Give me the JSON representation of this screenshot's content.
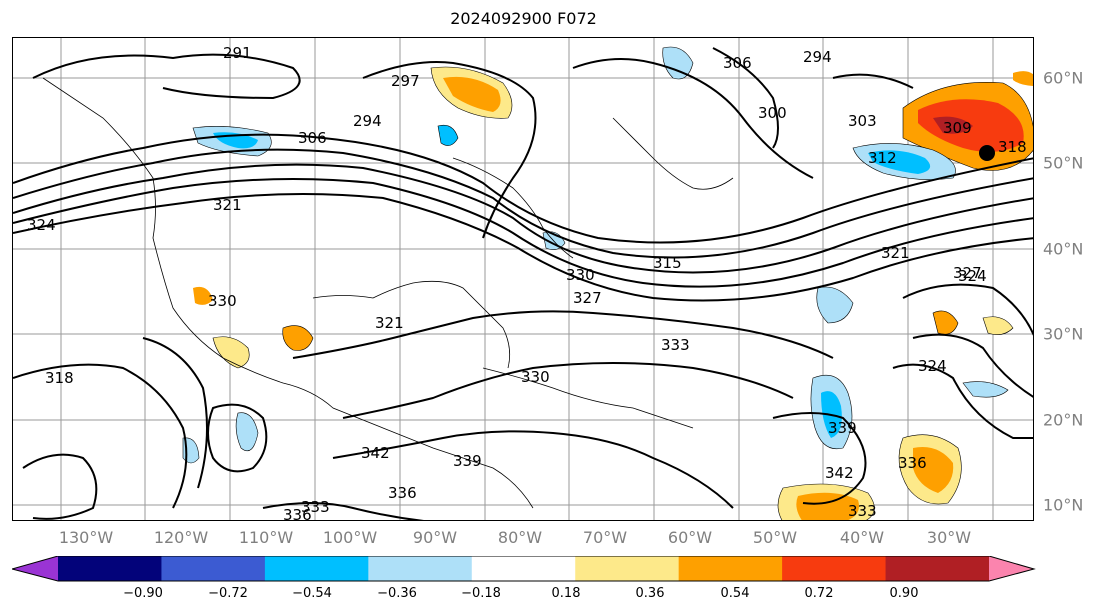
{
  "title": "2024092900 F072",
  "map": {
    "lon_ticks": [
      "130°W",
      "120°W",
      "110°W",
      "100°W",
      "90°W",
      "80°W",
      "70°W",
      "60°W",
      "50°W",
      "40°W",
      "30°W"
    ],
    "lat_ticks": [
      "60°N",
      "50°N",
      "40°N",
      "30°N",
      "20°N",
      "10°N"
    ],
    "contour_labels": [
      "291",
      "297",
      "294",
      "306",
      "300",
      "294",
      "303",
      "309",
      "312",
      "318",
      "324",
      "321",
      "315",
      "330",
      "327",
      "321",
      "330",
      "324",
      "333",
      "336",
      "339",
      "342",
      "318",
      "336",
      "333",
      "330",
      "339",
      "342",
      "336",
      "333",
      "324",
      "327",
      "321",
      "306"
    ],
    "marker": "filled-circle"
  },
  "colorbar": {
    "ticks": [
      "−0.90",
      "−0.72",
      "−0.54",
      "−0.36",
      "−0.18",
      "0.18",
      "0.36",
      "0.54",
      "0.72",
      "0.90"
    ],
    "colors": [
      "#9a34d4",
      "#03037a",
      "#3c5bd2",
      "#00bfff",
      "#aee0f8",
      "#ffffff",
      "#fde98a",
      "#fea000",
      "#f73b0f",
      "#b01f24",
      "#fb84ae"
    ]
  }
}
